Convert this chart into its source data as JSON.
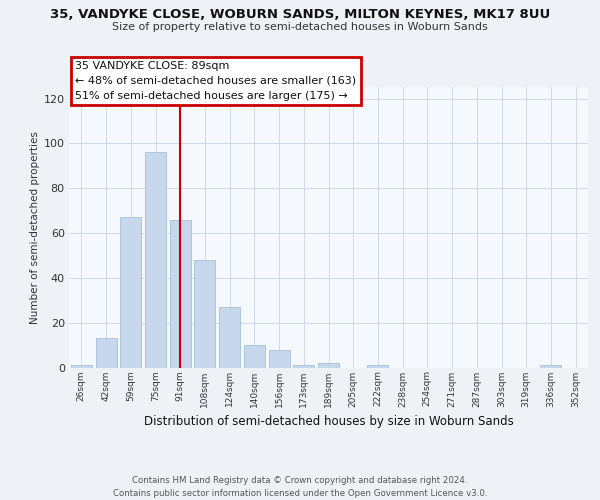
{
  "title": "35, VANDYKE CLOSE, WOBURN SANDS, MILTON KEYNES, MK17 8UU",
  "subtitle": "Size of property relative to semi-detached houses in Woburn Sands",
  "xlabel": "Distribution of semi-detached houses by size in Woburn Sands",
  "ylabel": "Number of semi-detached properties",
  "bar_color": "#c8d8ec",
  "bar_edgecolor": "#a8c0d8",
  "redline_color": "#cc0000",
  "background_color": "#eef2f7",
  "plot_bg_color": "#f5f8fc",
  "grid_color": "#d0d8e8",
  "annotation_box_facecolor": "#ffffff",
  "annotation_border_color": "#cc0000",
  "annotation_text1": "35 VANDYKE CLOSE: 89sqm",
  "annotation_text2": "← 48% of semi-detached houses are smaller (163)",
  "annotation_text3": "51% of semi-detached houses are larger (175) →",
  "categories": [
    "26sqm",
    "42sqm",
    "59sqm",
    "75sqm",
    "91sqm",
    "108sqm",
    "124sqm",
    "140sqm",
    "156sqm",
    "173sqm",
    "189sqm",
    "205sqm",
    "222sqm",
    "238sqm",
    "254sqm",
    "271sqm",
    "287sqm",
    "303sqm",
    "319sqm",
    "336sqm",
    "352sqm"
  ],
  "values": [
    1,
    13,
    67,
    96,
    66,
    48,
    27,
    10,
    8,
    1,
    2,
    0,
    1,
    0,
    0,
    0,
    0,
    0,
    0,
    1,
    0
  ],
  "ylim": [
    0,
    125
  ],
  "yticks": [
    0,
    20,
    40,
    60,
    80,
    100,
    120
  ],
  "redline_idx": 4,
  "footer1": "Contains HM Land Registry data © Crown copyright and database right 2024.",
  "footer2": "Contains public sector information licensed under the Open Government Licence v3.0."
}
